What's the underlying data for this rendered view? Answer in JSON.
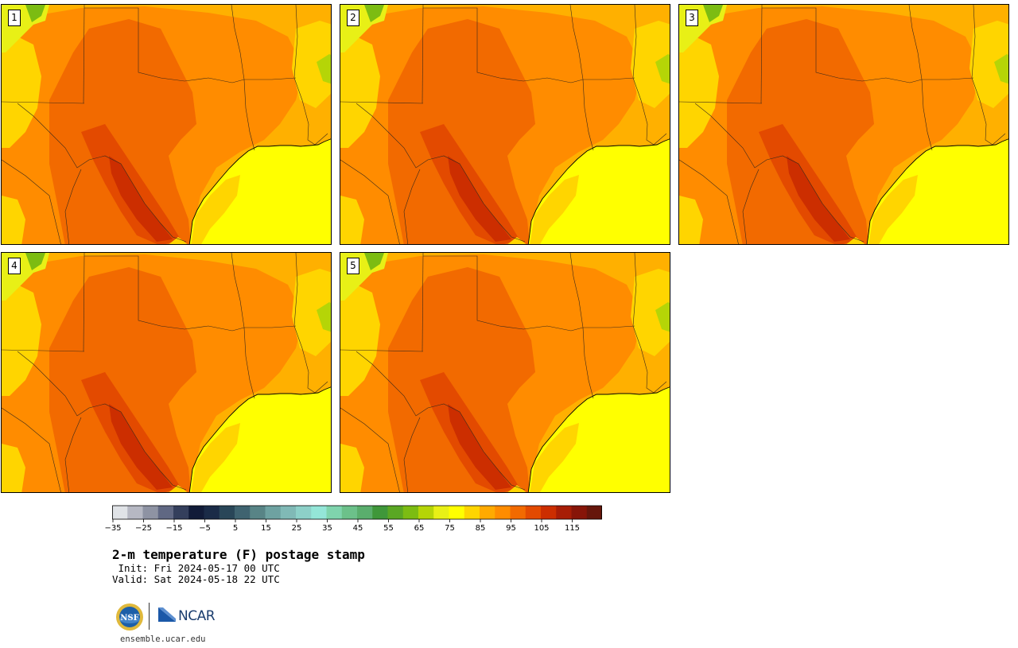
{
  "panels": [
    {
      "label": "1"
    },
    {
      "label": "2"
    },
    {
      "label": "3"
    },
    {
      "label": "4"
    },
    {
      "label": "5"
    }
  ],
  "colorbar": {
    "colors": [
      "#e0e3e7",
      "#b6b8c3",
      "#8e93a3",
      "#606883",
      "#343f5c",
      "#111b38",
      "#1a2b47",
      "#294658",
      "#3f6370",
      "#588486",
      "#6ea2a1",
      "#80b9b6",
      "#8dd0c8",
      "#94e6d8",
      "#7fd4ad",
      "#6cc18a",
      "#5aae6d",
      "#3f973a",
      "#5aa723",
      "#7cbc12",
      "#b5d507",
      "#e8f016",
      "#ffff00",
      "#ffd500",
      "#ffaa00",
      "#ff8c00",
      "#f26a00",
      "#e34a00",
      "#cc2e00",
      "#a71d06",
      "#871508",
      "#66160b"
    ],
    "tick_labels": [
      "−35",
      "−25",
      "−15",
      "−5",
      "5",
      "15",
      "25",
      "35",
      "45",
      "55",
      "65",
      "75",
      "85",
      "95",
      "105",
      "115"
    ]
  },
  "title": "2-m temperature (F) postage stamp",
  "init": " Init: Fri 2024-05-17 00 UTC",
  "valid": "Valid: Sat 2024-05-18 22 UTC",
  "logos": {
    "nsf": "NSF",
    "ncar": "NCAR"
  },
  "website": "ensemble.ucar.edu"
}
